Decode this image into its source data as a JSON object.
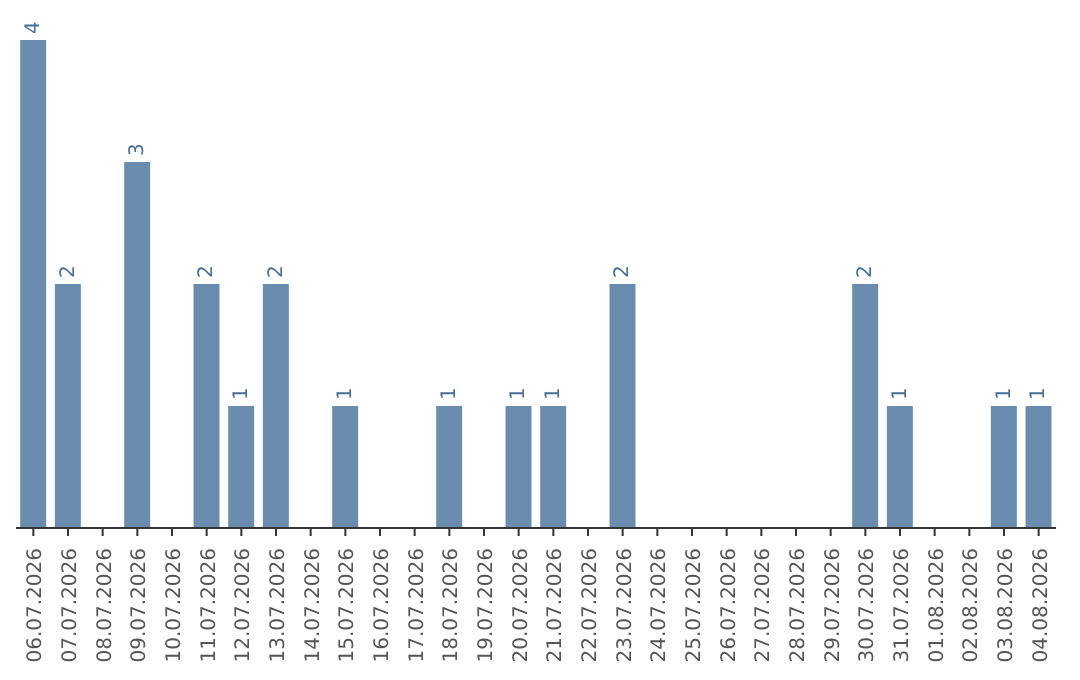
{
  "chart_data": {
    "type": "bar",
    "categories": [
      "06.07.2026",
      "07.07.2026",
      "08.07.2026",
      "09.07.2026",
      "10.07.2026",
      "11.07.2026",
      "12.07.2026",
      "13.07.2026",
      "14.07.2026",
      "15.07.2026",
      "16.07.2026",
      "17.07.2026",
      "18.07.2026",
      "19.07.2026",
      "20.07.2026",
      "21.07.2026",
      "22.07.2026",
      "23.07.2026",
      "24.07.2026",
      "25.07.2026",
      "26.07.2026",
      "27.07.2026",
      "28.07.2026",
      "29.07.2026",
      "30.07.2026",
      "31.07.2026",
      "01.08.2026",
      "02.08.2026",
      "03.08.2026",
      "04.08.2026"
    ],
    "values": [
      4,
      2,
      0,
      3,
      0,
      2,
      1,
      2,
      0,
      1,
      0,
      0,
      1,
      0,
      1,
      1,
      0,
      2,
      0,
      0,
      0,
      0,
      0,
      0,
      2,
      1,
      0,
      0,
      1,
      1
    ],
    "value_labels": [
      "4",
      "2",
      null,
      "3",
      null,
      "2",
      "1",
      "2",
      null,
      "1",
      null,
      null,
      "1",
      null,
      "1",
      "1",
      null,
      "2",
      null,
      null,
      null,
      null,
      null,
      null,
      "2",
      "1",
      null,
      null,
      "1",
      "1"
    ],
    "color": "#6a8caf",
    "tick_labels": "x"
  }
}
